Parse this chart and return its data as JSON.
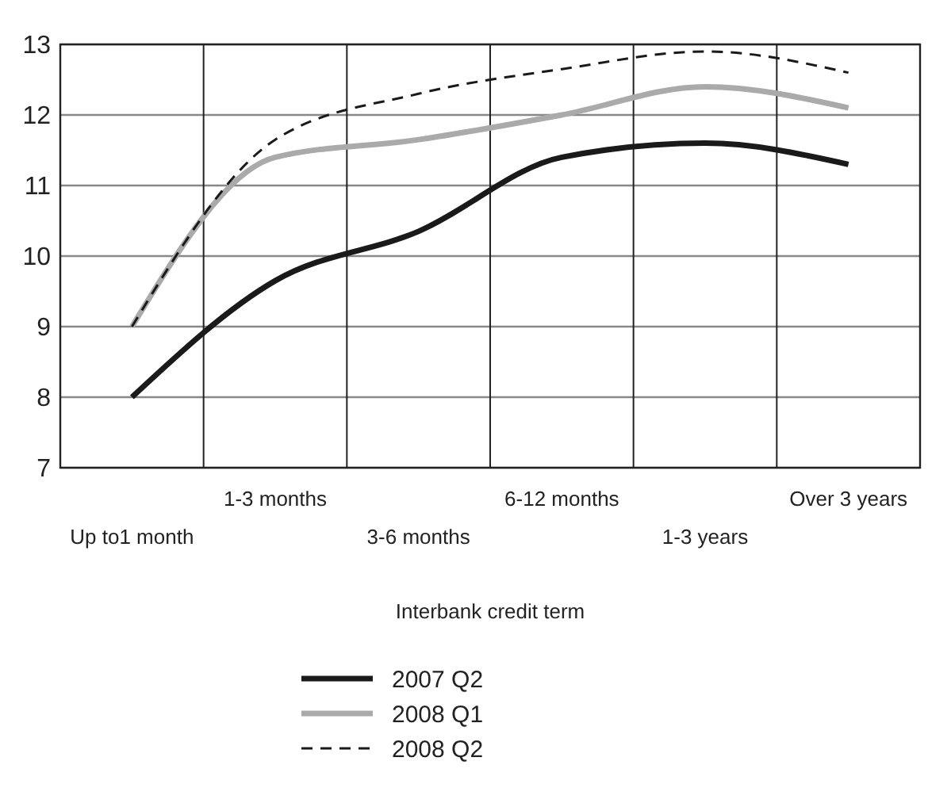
{
  "chart_data": {
    "type": "line",
    "xlabel": "Interbank credit term",
    "categories": [
      "Up to1 month",
      "1-3 months",
      "3-6 months",
      "6-12 months",
      "1-3 years",
      "Over 3 years"
    ],
    "series": [
      {
        "name": "2007 Q2",
        "color": "#1a1a1a",
        "line_style": "solid",
        "values": [
          8.0,
          9.65,
          10.35,
          11.4,
          11.6,
          11.3
        ]
      },
      {
        "name": "2008 Q1",
        "color": "#aaaaaa",
        "line_style": "solid",
        "values": [
          9.0,
          11.4,
          11.65,
          12.0,
          12.4,
          12.1
        ]
      },
      {
        "name": "2008 Q2",
        "color": "#1a1a1a",
        "line_style": "dashed",
        "values": [
          9.0,
          11.65,
          12.3,
          12.65,
          12.9,
          12.6
        ]
      }
    ],
    "ylim": [
      7,
      13
    ],
    "yticks": [
      7,
      8,
      9,
      10,
      11,
      12,
      13
    ],
    "grid": true,
    "legend": "bottom"
  }
}
